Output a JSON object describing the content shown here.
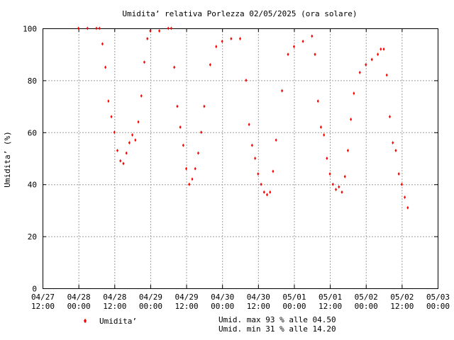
{
  "chart_data": {
    "type": "scatter",
    "title": "Umidita’ relativa Porlezza 02/05/2025 (ora solare)",
    "ylabel": "Umidita’ (%)",
    "xlabel": "",
    "ylim": [
      0,
      100
    ],
    "yticks": [
      0,
      20,
      40,
      60,
      80,
      100
    ],
    "ytick_labels": [
      "0",
      "20",
      "40",
      "60",
      "80",
      "100"
    ],
    "xlim": [
      "04/27 12:00",
      "05/03 00:00"
    ],
    "xtick_labels": [
      [
        "04/27",
        "12:00"
      ],
      [
        "04/28",
        "00:00"
      ],
      [
        "04/28",
        "12:00"
      ],
      [
        "04/29",
        "00:00"
      ],
      [
        "04/29",
        "12:00"
      ],
      [
        "04/30",
        "00:00"
      ],
      [
        "04/30",
        "12:00"
      ],
      [
        "05/01",
        "00:00"
      ],
      [
        "05/01",
        "12:00"
      ],
      [
        "05/02",
        "00:00"
      ],
      [
        "05/02",
        "12:00"
      ],
      [
        "05/03",
        "00:00"
      ]
    ],
    "grid": true,
    "marker_color": "#ff0000",
    "series": [
      {
        "name": "Umidita’",
        "color": "#ff0000",
        "x": [
          "04/28 00:00",
          "04/28 03:00",
          "04/28 06:00",
          "04/28 07:00",
          "04/28 08:00",
          "04/28 09:00",
          "04/28 10:00",
          "04/28 11:00",
          "04/28 12:00",
          "04/28 13:00",
          "04/28 14:00",
          "04/28 15:00",
          "04/28 16:00",
          "04/28 17:00",
          "04/28 18:00",
          "04/28 19:00",
          "04/28 20:00",
          "04/28 21:00",
          "04/28 22:00",
          "04/28 23:00",
          "04/29 00:00",
          "04/29 03:00",
          "04/29 06:00",
          "04/29 07:00",
          "04/29 08:00",
          "04/29 09:00",
          "04/29 10:00",
          "04/29 11:00",
          "04/29 12:00",
          "04/29 13:00",
          "04/29 14:00",
          "04/29 15:00",
          "04/29 16:00",
          "04/29 17:00",
          "04/29 18:00",
          "04/29 20:00",
          "04/29 22:00",
          "04/30 00:00",
          "04/30 03:00",
          "04/30 06:00",
          "04/30 08:00",
          "04/30 09:00",
          "04/30 10:00",
          "04/30 11:00",
          "04/30 12:00",
          "04/30 13:00",
          "04/30 14:00",
          "04/30 15:00",
          "04/30 16:00",
          "04/30 17:00",
          "04/30 18:00",
          "04/30 20:00",
          "04/30 22:00",
          "05/01 00:00",
          "05/01 03:00",
          "05/01 06:00",
          "05/01 07:00",
          "05/01 08:00",
          "05/01 09:00",
          "05/01 10:00",
          "05/01 11:00",
          "05/01 12:00",
          "05/01 13:00",
          "05/01 14:00",
          "05/01 15:00",
          "05/01 16:00",
          "05/01 17:00",
          "05/01 18:00",
          "05/01 19:00",
          "05/01 20:00",
          "05/01 22:00",
          "05/02 00:00",
          "05/02 02:00",
          "05/02 04:00",
          "05/02 05:00",
          "05/02 06:00",
          "05/02 07:00",
          "05/02 08:00",
          "05/02 09:00",
          "05/02 10:00",
          "05/02 11:00",
          "05/02 12:00",
          "05/02 13:00",
          "05/02 14:00"
        ],
        "y": [
          100,
          100,
          100,
          100,
          94,
          85,
          72,
          66,
          60,
          53,
          49,
          48,
          52,
          56,
          59,
          57,
          64,
          74,
          87,
          96,
          99,
          99,
          100,
          100,
          85,
          70,
          62,
          55,
          46,
          40,
          42,
          46,
          52,
          60,
          70,
          86,
          93,
          95,
          96,
          96,
          80,
          63,
          55,
          50,
          44,
          40,
          37,
          36,
          37,
          45,
          57,
          76,
          90,
          93,
          95,
          97,
          90,
          72,
          62,
          59,
          50,
          44,
          40,
          38,
          39,
          37,
          43,
          53,
          65,
          75,
          83,
          86,
          88,
          90,
          92,
          92,
          82,
          66,
          56,
          53,
          44,
          40,
          35,
          31
        ]
      }
    ]
  },
  "legend": {
    "label": "Umidita’"
  },
  "stats": {
    "max_line": "Umid. max 93 % alle 04.50",
    "min_line": "Umid. min 31 % alle 14.20"
  }
}
